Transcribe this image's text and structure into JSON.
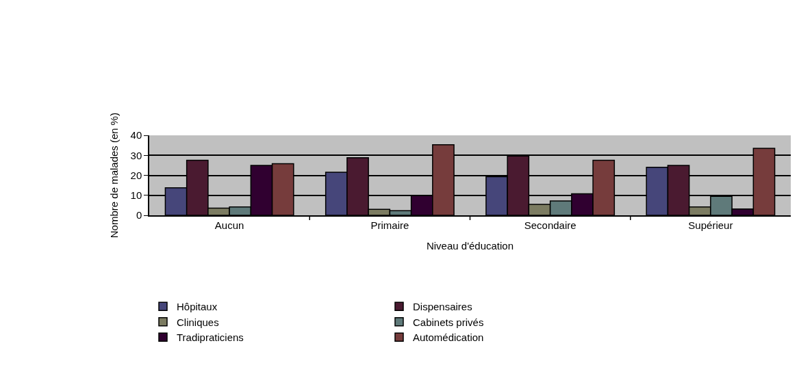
{
  "chart_data": {
    "type": "bar",
    "xlabel": "Niveau d'éducation",
    "ylabel": "Nombre de malades (en %)",
    "categories": [
      "Aucun",
      "Primaire",
      "Secondaire",
      "Supérieur"
    ],
    "series": [
      {
        "name": "Hôpitaux",
        "color": "#46467a",
        "values": [
          13.8,
          21.5,
          19.3,
          24
        ]
      },
      {
        "name": "Dispensaires",
        "color": "#4a1a30",
        "values": [
          27.5,
          28.8,
          29.7,
          25
        ]
      },
      {
        "name": "Cliniques",
        "color": "#7c7c62",
        "values": [
          3.6,
          3,
          5.5,
          4.2
        ]
      },
      {
        "name": "Cabinets privés",
        "color": "#5f7a7a",
        "values": [
          4.2,
          2.3,
          7.2,
          9.5
        ]
      },
      {
        "name": "Tradipraticiens",
        "color": "#300030",
        "values": [
          25,
          9.8,
          10.8,
          3.2
        ]
      },
      {
        "name": "Automédication",
        "color": "#763c3c",
        "values": [
          25.8,
          35.3,
          27.5,
          33.5
        ]
      }
    ],
    "ylim": [
      0,
      40
    ],
    "yticks": [
      0,
      10,
      20,
      30,
      40
    ],
    "grid": "y",
    "legend": "bottom"
  }
}
